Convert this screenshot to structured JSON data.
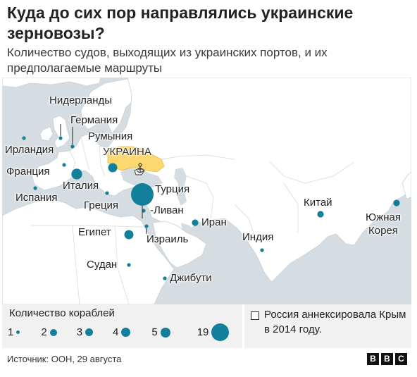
{
  "title": "Куда до сих пор направлялись украинские зерновозы?",
  "subtitle": "Количество судов, выходящих из украинских портов, и их предполагаемые маршруты",
  "colors": {
    "sea": "#d5dde3",
    "land": "#ffffff",
    "ukraine": "#fdd86e",
    "crimea": "#f3f3f3",
    "marker": "#12809a",
    "border": "#b9c3ca"
  },
  "map": {
    "ukraine_label": "УКРАИНА",
    "destinations": [
      {
        "name": "Нидерланды",
        "ships": 1
      },
      {
        "name": "Германия",
        "ships": 1
      },
      {
        "name": "Ирландия",
        "ships": 1
      },
      {
        "name": "Румыния",
        "ships": 3
      },
      {
        "name": "Франция",
        "ships": 1
      },
      {
        "name": "Италия",
        "ships": 4
      },
      {
        "name": "Испания",
        "ships": 1
      },
      {
        "name": "Турция",
        "ships": 19
      },
      {
        "name": "Греция",
        "ships": 1
      },
      {
        "name": "-Ливан",
        "ships": 1
      },
      {
        "name": "Египет",
        "ships": 3
      },
      {
        "name": "Израиль",
        "ships": 1
      },
      {
        "name": "Иран",
        "ships": 2
      },
      {
        "name": "Судан",
        "ships": 1
      },
      {
        "name": "Джибути",
        "ships": 1
      },
      {
        "name": "Индия",
        "ships": 1
      },
      {
        "name": "Китай",
        "ships": 2
      },
      {
        "name": "Южная Корея",
        "ships": 2
      }
    ]
  },
  "legend": {
    "title": "Количество кораблей",
    "items": [
      {
        "label": "1",
        "value": 1
      },
      {
        "label": "2",
        "value": 2
      },
      {
        "label": "3",
        "value": 3
      },
      {
        "label": "4",
        "value": 4
      },
      {
        "label": "5",
        "value": 5
      },
      {
        "label": "19",
        "value": 19
      }
    ],
    "note": "Россия аннексировала Крым в 2014 году."
  },
  "source": "Источник: ООН, 29 августа",
  "logo": "BBC"
}
